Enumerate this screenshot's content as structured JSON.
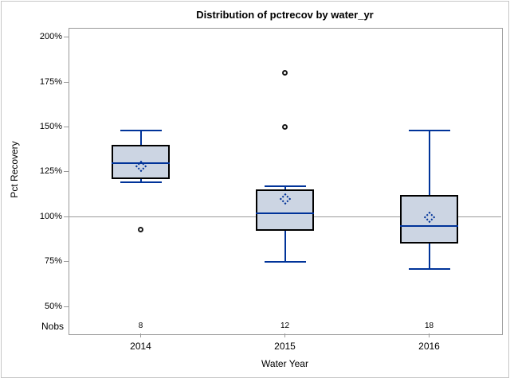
{
  "title": "Distribution of pctrecov by water_yr",
  "chart_data": {
    "type": "boxplot",
    "title": "Distribution of pctrecov by water_yr",
    "xlabel": "Water Year",
    "ylabel": "Pct Recovery",
    "nobs_row_label": "Nobs",
    "y_axis": {
      "min": 50,
      "max": 200,
      "tick_step": 25,
      "tick_labels": [
        "200%",
        "175%",
        "150%",
        "125%",
        "100%",
        "75%",
        "50%"
      ],
      "tick_values": [
        200,
        175,
        150,
        125,
        100,
        75,
        50
      ]
    },
    "reference_line_y": 100,
    "grid": "off",
    "categories": [
      "2014",
      "2015",
      "2016"
    ],
    "series": [
      {
        "category": "2014",
        "nobs": "8",
        "whisker_low": 119,
        "q1": 121,
        "median": 130,
        "mean": 128,
        "q3": 140,
        "whisker_high": 148,
        "outliers": [
          93
        ]
      },
      {
        "category": "2015",
        "nobs": "12",
        "whisker_low": 75,
        "q1": 92,
        "median": 102,
        "mean": 110,
        "q3": 115,
        "whisker_high": 117,
        "outliers": [
          150,
          180
        ]
      },
      {
        "category": "2016",
        "nobs": "18",
        "whisker_low": 71,
        "q1": 85,
        "median": 95,
        "mean": 99.5,
        "q3": 112,
        "whisker_high": 148,
        "outliers": []
      }
    ],
    "colors": {
      "box_fill": "#ccd5e3",
      "box_border": "#000000",
      "line_blue": "#003399",
      "frame_gray": "#9a9a9a",
      "outlier_stroke": "#1a1a1a",
      "outer_border": "#c6c6c6"
    }
  }
}
